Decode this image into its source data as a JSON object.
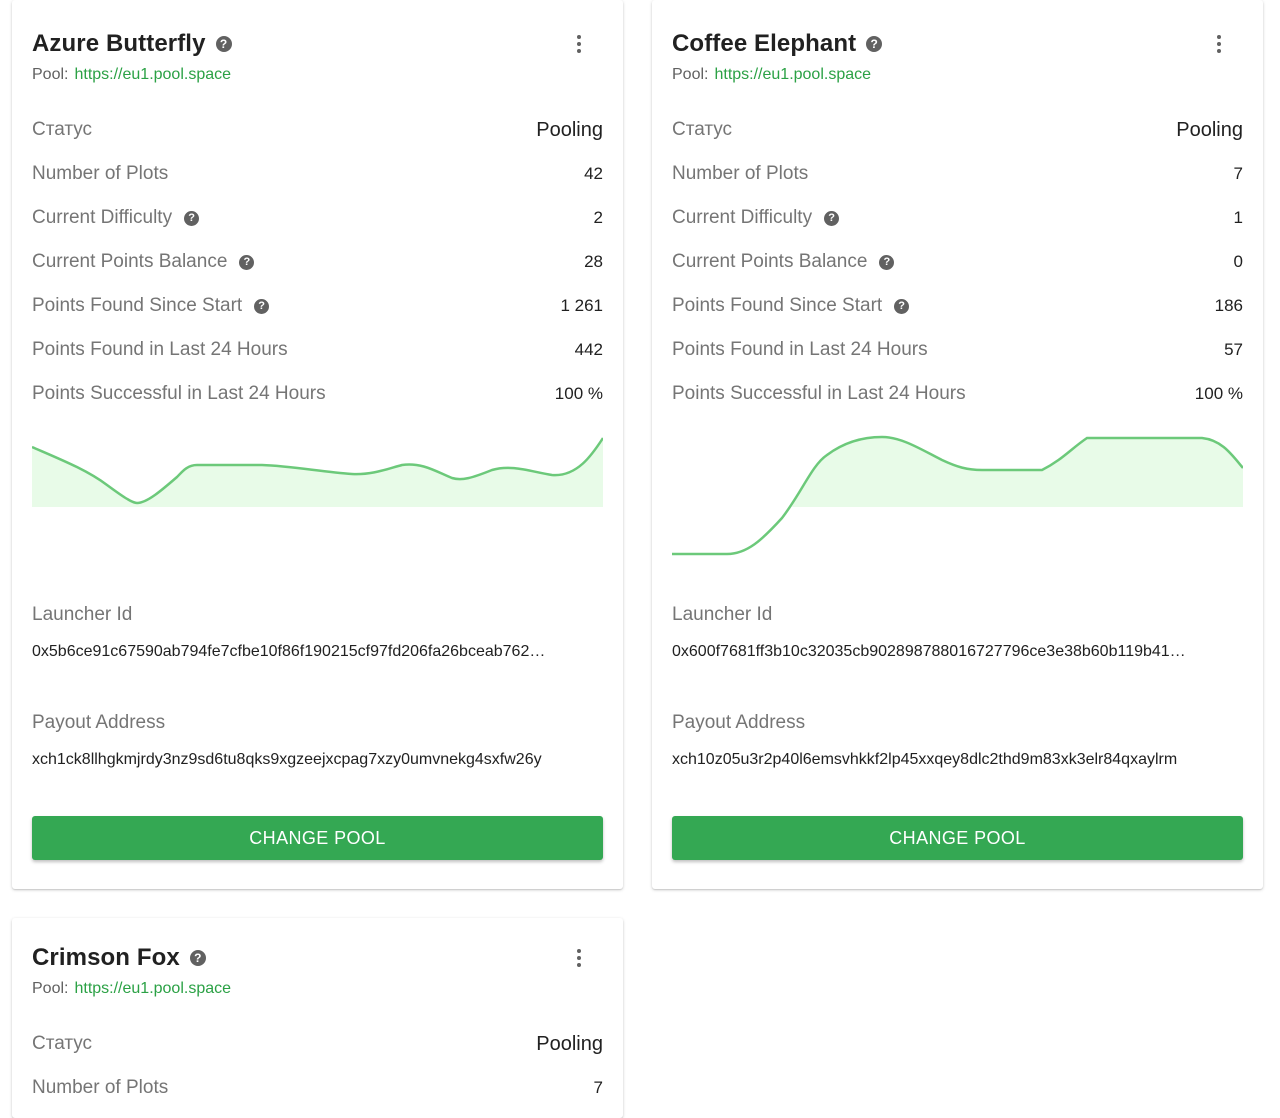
{
  "cards": [
    {
      "title": "Azure Butterfly",
      "pool_label": "Pool:",
      "pool_url": "https://eu1.pool.space",
      "status_label": "Статус",
      "status_value": "Pooling",
      "rows": [
        {
          "label": "Number of Plots",
          "value": "42"
        },
        {
          "label": "Current Difficulty",
          "value": "2"
        },
        {
          "label": "Current Points Balance",
          "value": "28"
        },
        {
          "label": "Points Found Since Start",
          "value": "1 261"
        },
        {
          "label": "Points Found in Last 24 Hours",
          "value": "442"
        },
        {
          "label": "Points Successful in Last 24 Hours",
          "value": "100 %"
        }
      ],
      "launcher_label": "Launcher Id",
      "launcher_value": "0x5b6ce91c67590ab794fe7cfbe10f86f190215cf97fd206fa26bceab762…",
      "payout_label": "Payout Address",
      "payout_value": "xch1ck8llhgkmjrdy3nz9sd6tu8qks9xgzeejxcpag7xzy0umvnekg4sxfw26y",
      "button_label": "CHANGE POOL"
    },
    {
      "title": "Coffee Elephant",
      "pool_label": "Pool:",
      "pool_url": "https://eu1.pool.space",
      "status_label": "Статус",
      "status_value": "Pooling",
      "rows": [
        {
          "label": "Number of Plots",
          "value": "7"
        },
        {
          "label": "Current Difficulty",
          "value": "1"
        },
        {
          "label": "Current Points Balance",
          "value": "0"
        },
        {
          "label": "Points Found Since Start",
          "value": "186"
        },
        {
          "label": "Points Found in Last 24 Hours",
          "value": "57"
        },
        {
          "label": "Points Successful in Last 24 Hours",
          "value": "100 %"
        }
      ],
      "launcher_label": "Launcher Id",
      "launcher_value": "0x600f7681ff3b10c32035cb902898788016727796ce3e38b60b119b41…",
      "payout_label": "Payout Address",
      "payout_value": "xch10z05u3r2p40l6emsvhkkf2lp45xxqey8dlc2thd9m83xk3elr84qxaylrm",
      "button_label": "CHANGE POOL"
    },
    {
      "title": "Crimson Fox",
      "pool_label": "Pool:",
      "pool_url": "https://eu1.pool.space",
      "status_label": "Статус",
      "status_value": "Pooling",
      "rows": [
        {
          "label": "Number of Plots",
          "value": "7"
        }
      ]
    }
  ],
  "colors": {
    "accent": "#34a853",
    "link": "#2ba145",
    "chart_line": "#6cc97a",
    "chart_fill": "#e8fbe8"
  },
  "icons": {
    "help": "help-circle-icon",
    "more": "more-vertical-icon"
  }
}
